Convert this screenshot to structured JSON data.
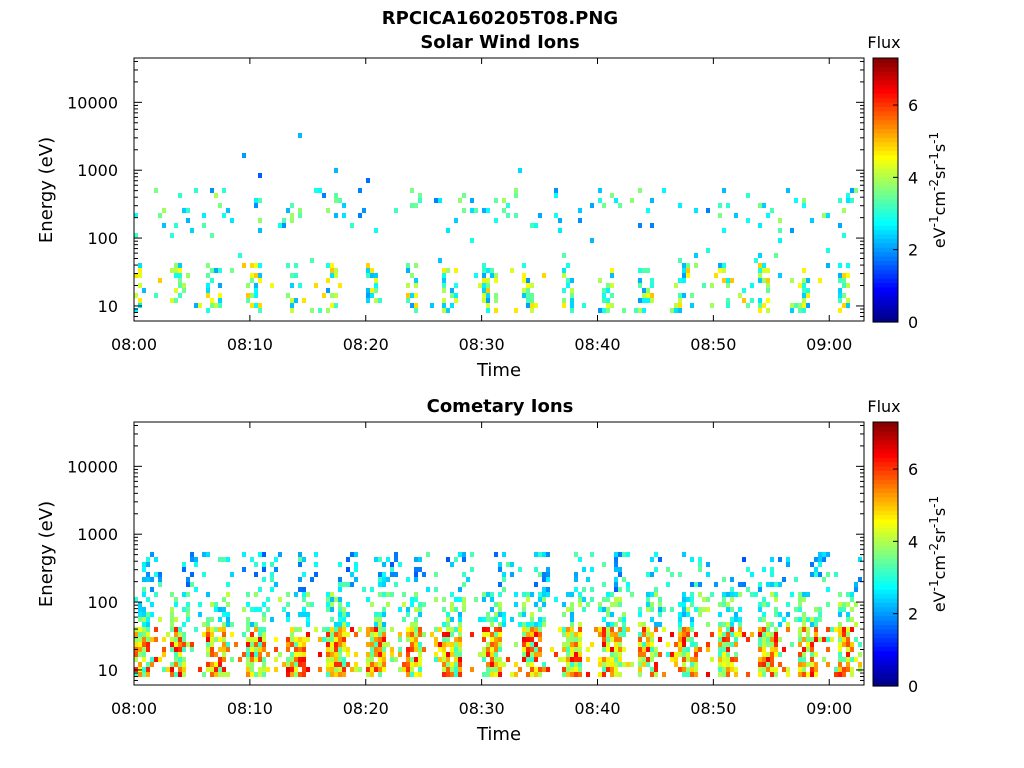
{
  "figure_title": "RPCICA160205T08.PNG",
  "chart_data": [
    {
      "type": "heatmap",
      "title": "Solar Wind Ions",
      "xlabel": "Time",
      "ylabel": "Energy (eV)",
      "y_scale": "log",
      "x_range": [
        "08:00",
        "09:03"
      ],
      "ylim": [
        6,
        45000
      ],
      "x_ticks": [
        "08:00",
        "08:10",
        "08:20",
        "08:30",
        "08:40",
        "08:50",
        "09:00"
      ],
      "y_ticks": [
        "10",
        "100",
        "1000",
        "10000"
      ],
      "colorbar": {
        "label": "Flux",
        "unit_parts": [
          "eV",
          "-1",
          "cm",
          "-2",
          "sr",
          "-1",
          "s",
          "-1"
        ],
        "ticks": [
          "0",
          "2",
          "4",
          "6"
        ],
        "range": [
          0,
          7.3
        ],
        "colormap": "jet"
      },
      "features": [
        {
          "energy_band_eV": [
            8,
            40
          ],
          "flux_range": [
            2,
            5
          ],
          "description_value": "low energy band bursts"
        },
        {
          "energy_band_eV": [
            150,
            500
          ],
          "flux_range": [
            2,
            4
          ],
          "description_value": "sparse mid energy"
        }
      ]
    },
    {
      "type": "heatmap",
      "title": "Cometary Ions",
      "xlabel": "Time",
      "ylabel": "Energy (eV)",
      "y_scale": "log",
      "x_range": [
        "08:00",
        "09:03"
      ],
      "ylim": [
        6,
        45000
      ],
      "x_ticks": [
        "08:00",
        "08:10",
        "08:20",
        "08:30",
        "08:40",
        "08:50",
        "09:00"
      ],
      "y_ticks": [
        "10",
        "100",
        "1000",
        "10000"
      ],
      "colorbar": {
        "label": "Flux",
        "unit_parts": [
          "eV",
          "-1",
          "cm",
          "-2",
          "sr",
          "-1",
          "s",
          "-1"
        ],
        "ticks": [
          "0",
          "2",
          "4",
          "6"
        ],
        "range": [
          0,
          7.3
        ],
        "colormap": "jet"
      },
      "features": [
        {
          "energy_band_eV": [
            8,
            45
          ],
          "flux_range": [
            3,
            6.5
          ],
          "description_value": "periodic strong low energy"
        },
        {
          "energy_band_eV": [
            50,
            500
          ],
          "flux_range": [
            1.5,
            4
          ],
          "description_value": "dispersed rising streaks"
        }
      ]
    }
  ]
}
